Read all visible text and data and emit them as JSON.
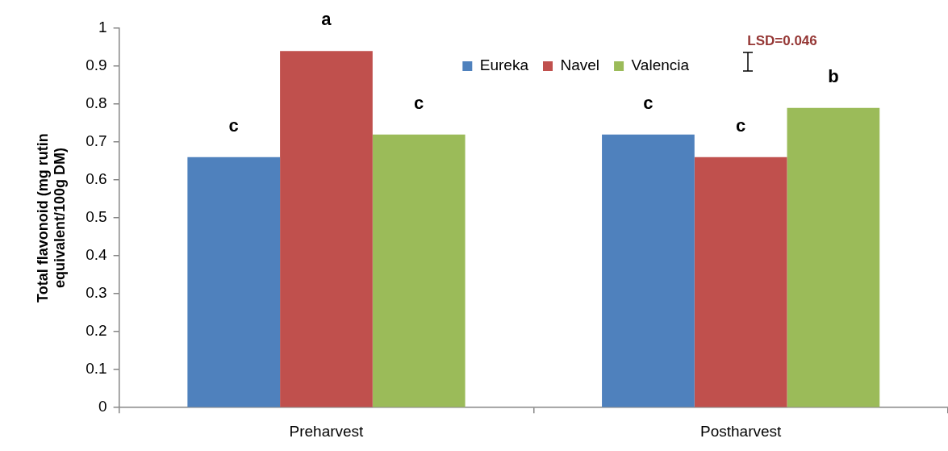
{
  "chart_data": {
    "type": "bar",
    "categories": [
      "Preharvest",
      "Postharvest"
    ],
    "series": [
      {
        "name": "Eureka",
        "color": "#4f81bd",
        "values": [
          0.66,
          0.72
        ],
        "value_labels": [
          "c",
          "c"
        ]
      },
      {
        "name": "Navel",
        "color": "#c0504d",
        "values": [
          0.94,
          0.66
        ],
        "value_labels": [
          "a",
          "c"
        ]
      },
      {
        "name": "Valencia",
        "color": "#9bbb59",
        "values": [
          0.72,
          0.79
        ],
        "value_labels": [
          "c",
          "b"
        ]
      }
    ],
    "ylabel": "Total flavonoid (mg rutin equivalent/100g DM)",
    "ylim": [
      0,
      1
    ],
    "yticks": [
      0,
      0.1,
      0.2,
      0.3,
      0.4,
      0.5,
      0.6,
      0.7,
      0.8,
      0.9,
      1
    ],
    "legend": "top",
    "annotations": [
      "LSD=0.046"
    ]
  }
}
